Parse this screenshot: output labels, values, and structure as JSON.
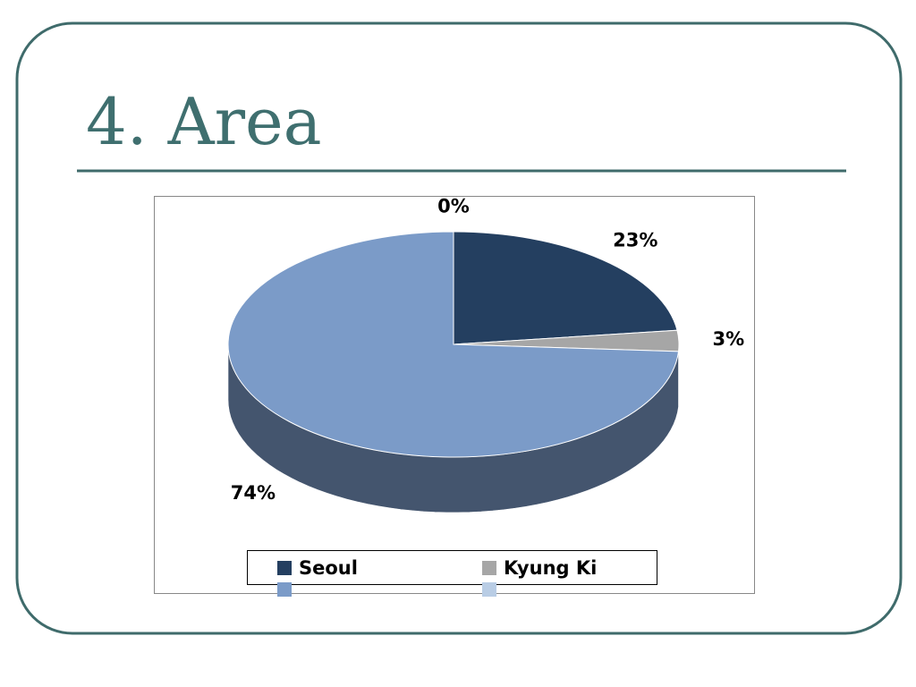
{
  "title": "4. Area",
  "chart_data": {
    "type": "pie3d",
    "categories": [
      "Seoul",
      "Kyung Ki",
      null,
      null
    ],
    "values": [
      23,
      3,
      74,
      0
    ],
    "value_labels": [
      "23%",
      "3%",
      "74%",
      "0%"
    ],
    "colors": [
      "#243f60",
      "#a6a6a6",
      "#7b9bc8",
      "#b9cde5"
    ],
    "legend": "bottom"
  }
}
